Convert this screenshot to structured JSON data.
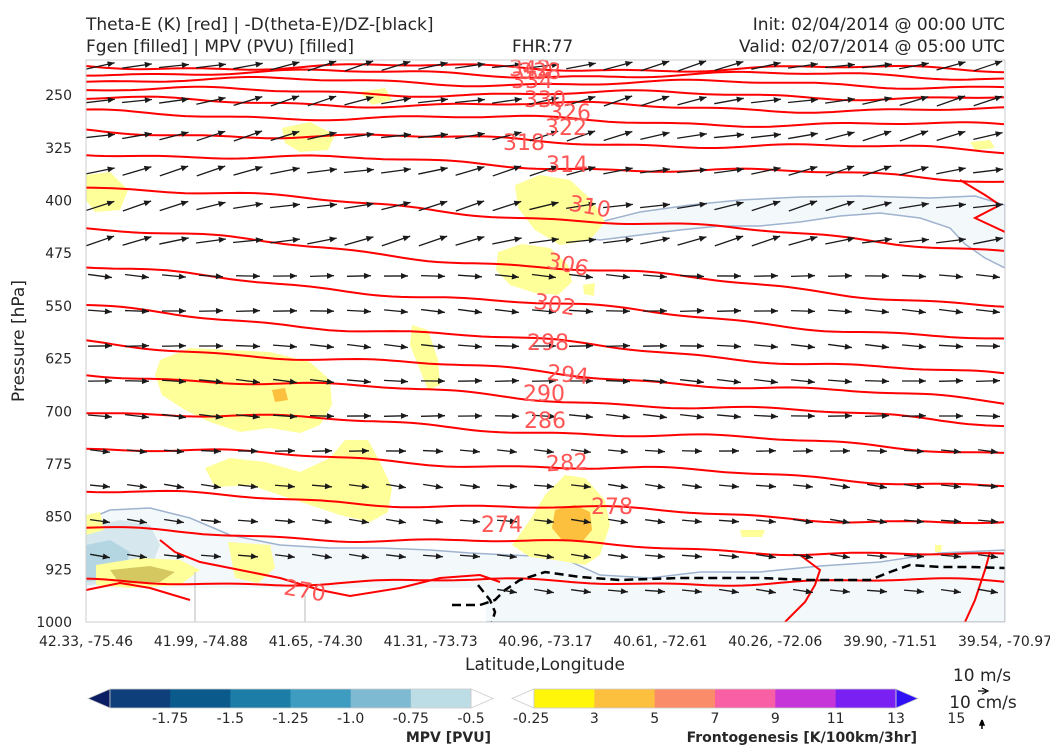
{
  "header": {
    "line1_left": "Theta-E (K) [red] | -D(theta-E)/DZ-[black]",
    "line2_left": "Fgen [filled] | MPV (PVU) [filled]",
    "fhr": "FHR:77",
    "init": "Init: 02/04/2014 @ 00:00 UTC",
    "valid": "Valid: 02/07/2014 @ 05:00 UTC"
  },
  "chart_data": {
    "type": "cross-section",
    "xlabel": "Latitude,Longitude",
    "ylabel": "Pressure [hPa]",
    "x_tick_labels": [
      "42.33, -75.46",
      "41.99, -74.88",
      "41.65, -74.30",
      "41.31, -73.73",
      "40.96, -73.17",
      "40.61, -72.61",
      "40.26, -72.06",
      "39.90, -71.51",
      "39.54, -70.97"
    ],
    "y_ticks": [
      250,
      325,
      400,
      475,
      550,
      625,
      700,
      775,
      850,
      925,
      1000
    ],
    "y_tick_labels": [
      "250",
      "325",
      "400",
      "475",
      "550",
      "625",
      "700",
      "775",
      "850",
      "925",
      "1000"
    ],
    "ylim": [
      200,
      1000
    ],
    "y_inverted": true,
    "theta_e_contour_labels": [
      "342",
      "338",
      "334",
      "330",
      "326",
      "322",
      "318",
      "314",
      "310",
      "306",
      "302",
      "298",
      "294",
      "290",
      "286",
      "282",
      "278",
      "274",
      "270"
    ],
    "theta_e_color": "#ff0000",
    "theta_e_label_color": "#ff5555",
    "wind_vector_color": "#1a1a1a",
    "grid": false
  },
  "colorbars": {
    "mpv": {
      "label": "MPV [PVU]",
      "tick_labels": [
        "-1.75",
        "-1.5",
        "-1.25",
        "-1.0",
        "-0.75",
        "-0.5",
        "-0.25"
      ],
      "colors": [
        "#0b1d63",
        "#0f3f7a",
        "#0b5a8c",
        "#1c7ea6",
        "#3f9cc1",
        "#7fbad3",
        "#bcdce6",
        "#ffffff"
      ]
    },
    "fgen": {
      "label": "Frontogenesis [K/100km/3hr]",
      "tick_labels": [
        "3",
        "5",
        "7",
        "9",
        "11",
        "13",
        "15"
      ],
      "colors": [
        "#ffffff",
        "#fff60a",
        "#fcbf3e",
        "#fb8c6a",
        "#f85fa4",
        "#c535d8",
        "#7a20f2",
        "#3010f4"
      ]
    }
  },
  "vector_key": {
    "horizontal": "10 m/s",
    "vertical": "10 cm/s"
  }
}
